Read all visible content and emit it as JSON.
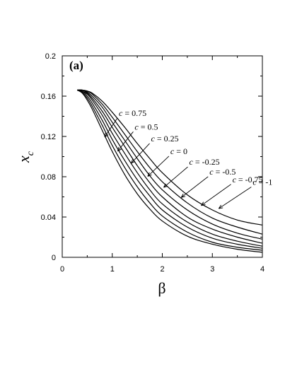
{
  "chart_data": {
    "type": "line",
    "panel_label": "(a)",
    "xlabel": "β",
    "ylabel": "x",
    "ylabel_subscript": "c",
    "xlim": [
      0,
      4
    ],
    "ylim": [
      0,
      0.2
    ],
    "xticks": [
      "0",
      "1",
      "2",
      "3",
      "4"
    ],
    "yticks": [
      "0",
      "0.04",
      "0.08",
      "0.12",
      "0.16",
      "0.2"
    ],
    "grid": false,
    "series": [
      {
        "name": "c = 0.75",
        "c_value": "0.75",
        "x": [
          0.3,
          0.4,
          0.5,
          0.6,
          0.8,
          1.0,
          1.25,
          1.5,
          1.75,
          2.0,
          2.5,
          3.0,
          3.5,
          4.0
        ],
        "y": [
          0.166,
          0.163,
          0.156,
          0.147,
          0.126,
          0.105,
          0.082,
          0.063,
          0.048,
          0.036,
          0.021,
          0.013,
          0.008,
          0.005
        ]
      },
      {
        "name": "c = 0.5",
        "c_value": "0.5",
        "x": [
          0.3,
          0.4,
          0.5,
          0.6,
          0.8,
          1.0,
          1.25,
          1.5,
          1.75,
          2.0,
          2.5,
          3.0,
          3.5,
          4.0
        ],
        "y": [
          0.166,
          0.164,
          0.158,
          0.15,
          0.131,
          0.111,
          0.089,
          0.07,
          0.054,
          0.041,
          0.025,
          0.015,
          0.01,
          0.007
        ]
      },
      {
        "name": "c = 0.25",
        "c_value": "0.25",
        "x": [
          0.3,
          0.4,
          0.5,
          0.6,
          0.8,
          1.0,
          1.25,
          1.5,
          1.75,
          2.0,
          2.5,
          3.0,
          3.5,
          4.0
        ],
        "y": [
          0.166,
          0.165,
          0.16,
          0.153,
          0.136,
          0.117,
          0.096,
          0.077,
          0.061,
          0.047,
          0.03,
          0.019,
          0.013,
          0.009
        ]
      },
      {
        "name": "c = 0",
        "c_value": "0",
        "x": [
          0.3,
          0.4,
          0.5,
          0.6,
          0.8,
          1.0,
          1.25,
          1.5,
          1.75,
          2.0,
          2.5,
          3.0,
          3.5,
          4.0
        ],
        "y": [
          0.166,
          0.165,
          0.162,
          0.156,
          0.141,
          0.123,
          0.103,
          0.084,
          0.067,
          0.053,
          0.035,
          0.023,
          0.016,
          0.011
        ]
      },
      {
        "name": "c = -0.25",
        "c_value": "-0.25",
        "x": [
          0.3,
          0.4,
          0.5,
          0.6,
          0.8,
          1.0,
          1.25,
          1.5,
          1.75,
          2.0,
          2.5,
          3.0,
          3.5,
          4.0
        ],
        "y": [
          0.166,
          0.166,
          0.163,
          0.158,
          0.145,
          0.129,
          0.11,
          0.091,
          0.074,
          0.06,
          0.04,
          0.028,
          0.02,
          0.014
        ]
      },
      {
        "name": "c = -0.5",
        "c_value": "-0.5",
        "x": [
          0.3,
          0.4,
          0.5,
          0.6,
          0.8,
          1.0,
          1.25,
          1.5,
          1.75,
          2.0,
          2.5,
          3.0,
          3.5,
          4.0
        ],
        "y": [
          0.166,
          0.166,
          0.164,
          0.16,
          0.149,
          0.134,
          0.116,
          0.098,
          0.081,
          0.067,
          0.047,
          0.033,
          0.024,
          0.018
        ]
      },
      {
        "name": "c = -0.75",
        "c_value": "-0.75",
        "x": [
          0.3,
          0.4,
          0.5,
          0.6,
          0.8,
          1.0,
          1.25,
          1.5,
          1.75,
          2.0,
          2.5,
          3.0,
          3.5,
          4.0
        ],
        "y": [
          0.166,
          0.166,
          0.165,
          0.162,
          0.152,
          0.139,
          0.122,
          0.105,
          0.089,
          0.075,
          0.054,
          0.039,
          0.03,
          0.023
        ]
      },
      {
        "name": "c = -1",
        "c_value": "-1",
        "x": [
          0.3,
          0.4,
          0.5,
          0.6,
          0.8,
          1.0,
          1.25,
          1.5,
          1.75,
          2.0,
          2.5,
          3.0,
          3.5,
          4.0
        ],
        "y": [
          0.166,
          0.166,
          0.165,
          0.163,
          0.155,
          0.144,
          0.129,
          0.113,
          0.098,
          0.084,
          0.062,
          0.047,
          0.037,
          0.032
        ]
      }
    ],
    "annotations": [
      {
        "text": "c = 0.75",
        "c_value": "0.75",
        "points_to": [
          0.82,
          0.118
        ]
      },
      {
        "text": "c = 0.5",
        "c_value": "0.5",
        "points_to": [
          1.08,
          0.104
        ]
      },
      {
        "text": "c = 0.25",
        "c_value": "0.25",
        "points_to": [
          1.35,
          0.092
        ]
      },
      {
        "text": "c = 0",
        "c_value": "0",
        "points_to": [
          1.68,
          0.079
        ]
      },
      {
        "text": "c = -0.25",
        "c_value": "-0.25",
        "points_to": [
          2.0,
          0.068
        ]
      },
      {
        "text": "c = -0.5",
        "c_value": "-0.5",
        "points_to": [
          2.35,
          0.058
        ]
      },
      {
        "text": "c = -0.75",
        "c_value": "-0.75",
        "points_to": [
          2.75,
          0.05
        ]
      },
      {
        "text": "c = -1",
        "c_value": "-1",
        "points_to": [
          3.1,
          0.047
        ]
      }
    ]
  }
}
